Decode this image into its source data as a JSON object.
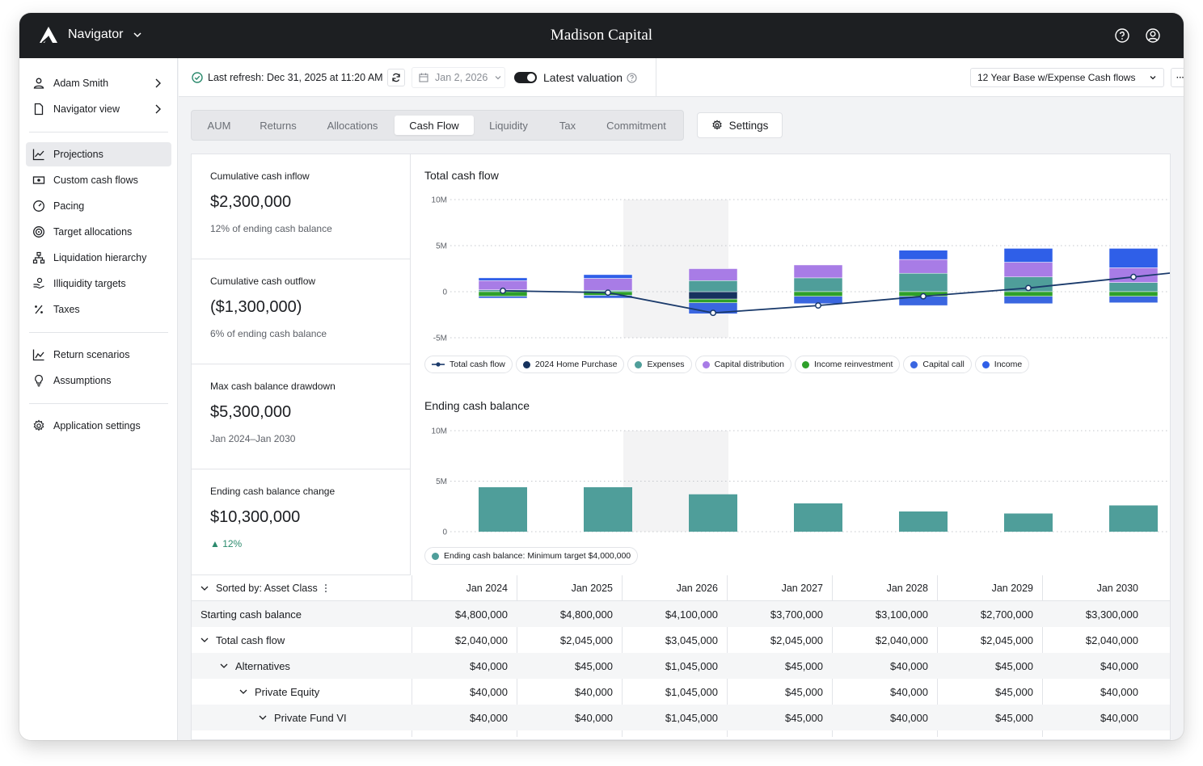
{
  "app": {
    "name": "Navigator",
    "org": "Madison Capital"
  },
  "sidebar": {
    "top": [
      {
        "label": "Adam Smith",
        "icon": "user-icon"
      },
      {
        "label": "Navigator view",
        "icon": "document-icon"
      }
    ],
    "nav": [
      {
        "label": "Projections",
        "icon": "chart-line-icon",
        "active": true
      },
      {
        "label": "Custom cash flows",
        "icon": "cash-icon"
      },
      {
        "label": "Pacing",
        "icon": "gauge-icon"
      },
      {
        "label": "Target allocations",
        "icon": "target-icon"
      },
      {
        "label": "Liquidation hierarchy",
        "icon": "hierarchy-icon"
      },
      {
        "label": "Illiquidity targets",
        "icon": "hand-coins-icon"
      },
      {
        "label": "Taxes",
        "icon": "percent-icon"
      }
    ],
    "nav2": [
      {
        "label": "Return scenarios",
        "icon": "chart-bars-icon"
      },
      {
        "label": "Assumptions",
        "icon": "lightbulb-icon"
      }
    ],
    "nav3": [
      {
        "label": "Application settings",
        "icon": "gear-icon"
      }
    ]
  },
  "header": {
    "refresh": "Last refresh: Dec 31, 2025 at 11:20 AM",
    "date": "Jan 2, 2026",
    "valuation": "Latest valuation",
    "scenario": "12 Year Base w/Expense Cash flows",
    "more": "···"
  },
  "tabs": [
    "AUM",
    "Returns",
    "Allocations",
    "Cash Flow",
    "Liquidity",
    "Tax",
    "Commitment"
  ],
  "active_tab": "Cash Flow",
  "settings_label": "Settings",
  "stats": [
    {
      "label": "Cumulative cash inflow",
      "value": "$2,300,000",
      "sub": "12% of ending cash balance"
    },
    {
      "label": "Cumulative cash outflow",
      "value": "($1,300,000)",
      "sub": "6% of ending cash balance"
    },
    {
      "label": "Max cash balance drawdown",
      "value": "$5,300,000",
      "sub": "Jan 2024–Jan 2030"
    },
    {
      "label": "Ending cash balance change",
      "value": "$10,300,000",
      "sub": "▲ 12%"
    }
  ],
  "colors": {
    "line": "#1a3a6b",
    "home": "#16325e",
    "expenses": "#4f9e9a",
    "capdist": "#a87ce6",
    "reinvest": "#2ea02a",
    "capcall": "#3a66e0",
    "income": "#2f5fe8",
    "balance": "#4f9e9a"
  },
  "chart_data": [
    {
      "type": "bar",
      "title": "Total cash flow",
      "categories": [
        "Jan 2024",
        "Jan 2025",
        "Jan 2026",
        "Jan 2027",
        "Jan 2028",
        "Jan 2029",
        "Jan 2030"
      ],
      "ylim": [
        -5,
        10
      ],
      "yticks": [
        "10M",
        "5M",
        "0",
        "-5M"
      ],
      "grid": true,
      "legend_position": "bottom",
      "highlight_category": "Jan 2026",
      "stacked_series": [
        {
          "name": "2024 Home Purchase",
          "color": "#16325e",
          "values": [
            0,
            0,
            -0.8,
            0,
            0,
            0,
            0
          ]
        },
        {
          "name": "Expenses",
          "color": "#4f9e9a",
          "values": [
            0.2,
            0.15,
            1.2,
            1.5,
            2.0,
            1.6,
            1.0
          ]
        },
        {
          "name": "Capital distribution",
          "color": "#a87ce6",
          "values": [
            1.0,
            1.3,
            1.3,
            1.4,
            1.5,
            1.6,
            1.6
          ]
        },
        {
          "name": "Income reinvestment",
          "color": "#2ea02a",
          "values": [
            -0.5,
            -0.4,
            -0.4,
            -0.5,
            -0.5,
            -0.5,
            -0.5
          ]
        },
        {
          "name": "Capital call",
          "color": "#3a66e0",
          "values": [
            -0.2,
            -0.3,
            -1.2,
            -0.8,
            -1.0,
            -0.8,
            -0.7
          ]
        },
        {
          "name": "Income",
          "color": "#2f5fe8",
          "values": [
            0.3,
            0.4,
            0,
            0,
            1.0,
            1.5,
            2.1
          ]
        }
      ],
      "line_series": {
        "name": "Total cash flow",
        "color": "#1a3a6b",
        "values": [
          0.1,
          -0.1,
          -2.3,
          -1.5,
          -0.5,
          0.4,
          1.6
        ]
      }
    },
    {
      "type": "bar",
      "title": "Ending cash balance",
      "categories": [
        "Jan 2024",
        "Jan 2025",
        "Jan 2026",
        "Jan 2027",
        "Jan 2028",
        "Jan 2029",
        "Jan 2030"
      ],
      "ylim": [
        0,
        10
      ],
      "yticks": [
        "10M",
        "5M",
        "0"
      ],
      "grid": true,
      "highlight_category": "Jan 2026",
      "series": [
        {
          "name": "Ending cash balance: Minimum target $4,000,000",
          "color": "#4f9e9a",
          "values": [
            4.4,
            4.4,
            3.7,
            2.8,
            2.0,
            1.8,
            2.6
          ]
        }
      ]
    }
  ],
  "table": {
    "sort_label": "Sorted by: Asset Class",
    "columns": [
      "Jan 2024",
      "Jan 2025",
      "Jan 2026",
      "Jan 2027",
      "Jan 2028",
      "Jan 2029",
      "Jan 2030"
    ],
    "rows": [
      {
        "label": "Starting cash balance",
        "indent": 0,
        "caret": false,
        "values": [
          "$4,800,000",
          "$4,800,000",
          "$4,100,000",
          "$3,700,000",
          "$3,100,000",
          "$2,700,000",
          "$3,300,000"
        ]
      },
      {
        "label": "Total cash flow",
        "indent": 0,
        "caret": true,
        "values": [
          "$2,040,000",
          "$2,045,000",
          "$3,045,000",
          "$2,045,000",
          "$2,040,000",
          "$2,045,000",
          "$2,040,000"
        ]
      },
      {
        "label": "Alternatives",
        "indent": 1,
        "caret": true,
        "values": [
          "$40,000",
          "$45,000",
          "$1,045,000",
          "$45,000",
          "$40,000",
          "$45,000",
          "$40,000"
        ]
      },
      {
        "label": "Private Equity",
        "indent": 2,
        "caret": true,
        "values": [
          "$40,000",
          "$40,000",
          "$1,045,000",
          "$45,000",
          "$40,000",
          "$45,000",
          "$40,000"
        ]
      },
      {
        "label": "Private Fund VI",
        "indent": 3,
        "caret": true,
        "values": [
          "$40,000",
          "$40,000",
          "$1,045,000",
          "$45,000",
          "$40,000",
          "$45,000",
          "$40,000"
        ]
      }
    ]
  }
}
